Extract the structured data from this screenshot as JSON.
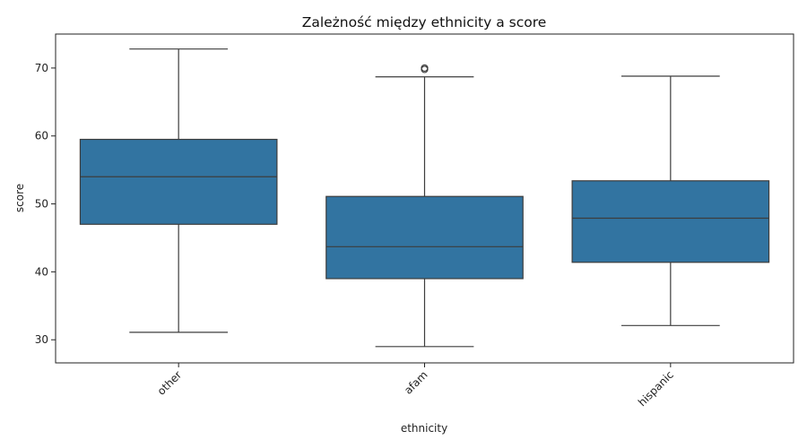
{
  "chart_data": {
    "type": "box",
    "title": "Zależność między ethnicity a score",
    "xlabel": "ethnicity",
    "ylabel": "score",
    "ylim": [
      26.6,
      75.0
    ],
    "yticks": [
      30,
      40,
      50,
      60,
      70
    ],
    "box_color": "#3274a1",
    "line_color": "#3d3d3d",
    "categories": [
      "other",
      "afam",
      "hispanic"
    ],
    "boxes": [
      {
        "category": "other",
        "whisker_low": 31.1,
        "q1": 47.0,
        "median": 54.0,
        "q3": 59.5,
        "whisker_high": 72.8,
        "outliers": []
      },
      {
        "category": "afam",
        "whisker_low": 29.0,
        "q1": 39.0,
        "median": 43.7,
        "q3": 51.1,
        "whisker_high": 68.7,
        "outliers": [
          69.8,
          70.0
        ]
      },
      {
        "category": "hispanic",
        "whisker_low": 32.1,
        "q1": 41.4,
        "median": 47.9,
        "q3": 53.4,
        "whisker_high": 68.8,
        "outliers": []
      }
    ]
  }
}
